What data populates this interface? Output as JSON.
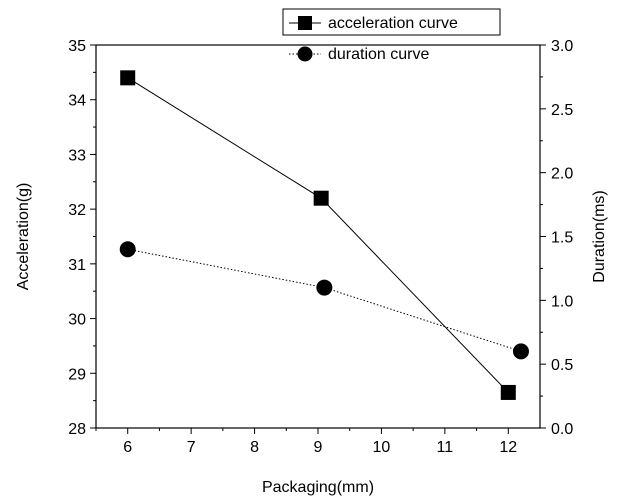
{
  "chart_data": {
    "type": "line",
    "title": "",
    "xlabel": "Packaging(mm)",
    "ylabel_left": "Acceleration(g)",
    "ylabel_right": "Duration(ms)",
    "x_range": [
      5.5,
      12.5
    ],
    "y_left_range": [
      28,
      35
    ],
    "y_right_range": [
      0.0,
      3.0
    ],
    "x_ticks": [
      "6",
      "7",
      "8",
      "9",
      "10",
      "11",
      "12"
    ],
    "y_left_ticks": [
      "28",
      "29",
      "30",
      "31",
      "32",
      "33",
      "34",
      "35"
    ],
    "y_right_ticks": [
      "0.0",
      "0.5",
      "1.0",
      "1.5",
      "2.0",
      "2.5",
      "3.0"
    ],
    "grid": false,
    "legend_position": "top-right",
    "series": [
      {
        "name": "acceleration curve",
        "axis": "left",
        "marker": "square",
        "line_style": "solid",
        "x": [
          6,
          9.05,
          12
        ],
        "y": [
          34.4,
          32.2,
          28.65
        ]
      },
      {
        "name": "duration curve",
        "axis": "right",
        "marker": "circle",
        "line_style": "dotted",
        "x": [
          6,
          9.1,
          12.2
        ],
        "y": [
          1.4,
          1.1,
          0.6
        ]
      }
    ]
  }
}
